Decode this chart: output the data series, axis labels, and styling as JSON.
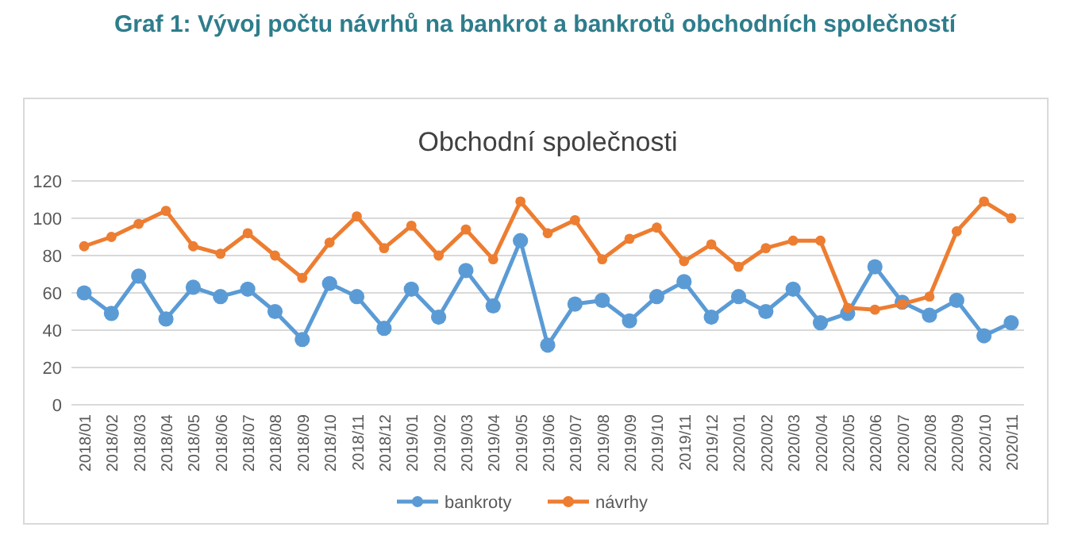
{
  "chart_data": {
    "type": "line",
    "title": "Graf 1: Vývoj počtu návrhů na bankrot a bankrotů obchodních společností",
    "subtitle": "Obchodní společnosti",
    "categories": [
      "2018/01",
      "2018/02",
      "2018/03",
      "2018/04",
      "2018/05",
      "2018/06",
      "2018/07",
      "2018/08",
      "2018/09",
      "2018/10",
      "2018/11",
      "2018/12",
      "2019/01",
      "2019/02",
      "2019/03",
      "2019/04",
      "2019/05",
      "2019/06",
      "2019/07",
      "2019/08",
      "2019/09",
      "2019/10",
      "2019/11",
      "2019/12",
      "2020/01",
      "2020/02",
      "2020/03",
      "2020/04",
      "2020/05",
      "2020/06",
      "2020/07",
      "2020/08",
      "2020/09",
      "2020/10",
      "2020/11"
    ],
    "series": [
      {
        "name": "bankroty",
        "color": "#5b9bd5",
        "values": [
          60,
          49,
          69,
          46,
          63,
          58,
          62,
          50,
          35,
          65,
          58,
          41,
          62,
          47,
          72,
          53,
          88,
          32,
          54,
          56,
          45,
          58,
          66,
          47,
          58,
          50,
          62,
          44,
          49,
          74,
          55,
          48,
          56,
          37,
          44
        ]
      },
      {
        "name": "návrhy",
        "color": "#ed7d31",
        "values": [
          85,
          90,
          97,
          104,
          85,
          81,
          92,
          80,
          68,
          87,
          101,
          84,
          96,
          80,
          94,
          78,
          109,
          92,
          99,
          78,
          89,
          95,
          77,
          86,
          74,
          84,
          88,
          88,
          52,
          51,
          54,
          58,
          93,
          109,
          100
        ]
      }
    ],
    "ylim": [
      0,
      120
    ],
    "yticks": [
      0,
      20,
      40,
      60,
      80,
      100,
      120
    ],
    "grid": "y",
    "legend": "bottom",
    "marker": "circle",
    "line_style": "solid"
  }
}
